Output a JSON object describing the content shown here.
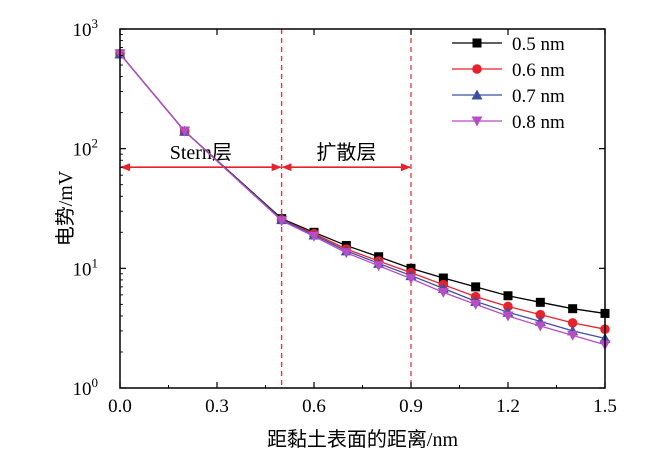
{
  "chart_data": {
    "type": "line",
    "title": "",
    "xlabel": "距黏土表面的距离/nm",
    "ylabel": "电势/mV",
    "xlim": [
      0,
      1.5
    ],
    "ylim": [
      1,
      1000
    ],
    "y_scale": "log",
    "grid": false,
    "legend_position": "top-right",
    "x_ticks": [
      "0.0",
      "0.3",
      "0.6",
      "0.9",
      "1.2",
      "1.5"
    ],
    "y_ticks": [
      {
        "value": 1,
        "base": "10",
        "exp": "0"
      },
      {
        "value": 10,
        "base": "10",
        "exp": "1"
      },
      {
        "value": 100,
        "base": "10",
        "exp": "2"
      },
      {
        "value": 1000,
        "base": "10",
        "exp": "3"
      }
    ],
    "x": [
      0.0,
      0.2,
      0.5,
      0.6,
      0.7,
      0.8,
      0.9,
      1.0,
      1.1,
      1.2,
      1.3,
      1.4,
      1.5
    ],
    "series": [
      {
        "name": "0.5 nm",
        "color": "#000000",
        "marker": "square",
        "values": [
          620,
          140,
          26,
          20,
          15.5,
          12.5,
          10,
          8.3,
          7,
          5.9,
          5.2,
          4.6,
          4.2
        ]
      },
      {
        "name": "0.6 nm",
        "color": "#e8222a",
        "marker": "circle",
        "values": [
          620,
          140,
          25.5,
          19.5,
          14.5,
          11.5,
          9.2,
          7.3,
          5.8,
          4.8,
          4.1,
          3.5,
          3.1
        ]
      },
      {
        "name": "0.7 nm",
        "color": "#3b4fa3",
        "marker": "triangle-up",
        "values": [
          620,
          140,
          25.5,
          19,
          14,
          11,
          8.7,
          6.8,
          5.3,
          4.3,
          3.6,
          3.0,
          2.6
        ]
      },
      {
        "name": "0.8 nm",
        "color": "#b64ec4",
        "marker": "triangle-down",
        "values": [
          620,
          140,
          25,
          18.5,
          13.5,
          10.5,
          8.2,
          6.3,
          5.0,
          4.0,
          3.3,
          2.75,
          2.3
        ]
      }
    ],
    "vlines": [
      0.5,
      0.9
    ],
    "regions": [
      {
        "label": "Stern层",
        "x_start": 0.0,
        "x_end": 0.5,
        "y": 70
      },
      {
        "label": "扩散层",
        "x_start": 0.5,
        "x_end": 0.9,
        "y": 70
      }
    ]
  }
}
